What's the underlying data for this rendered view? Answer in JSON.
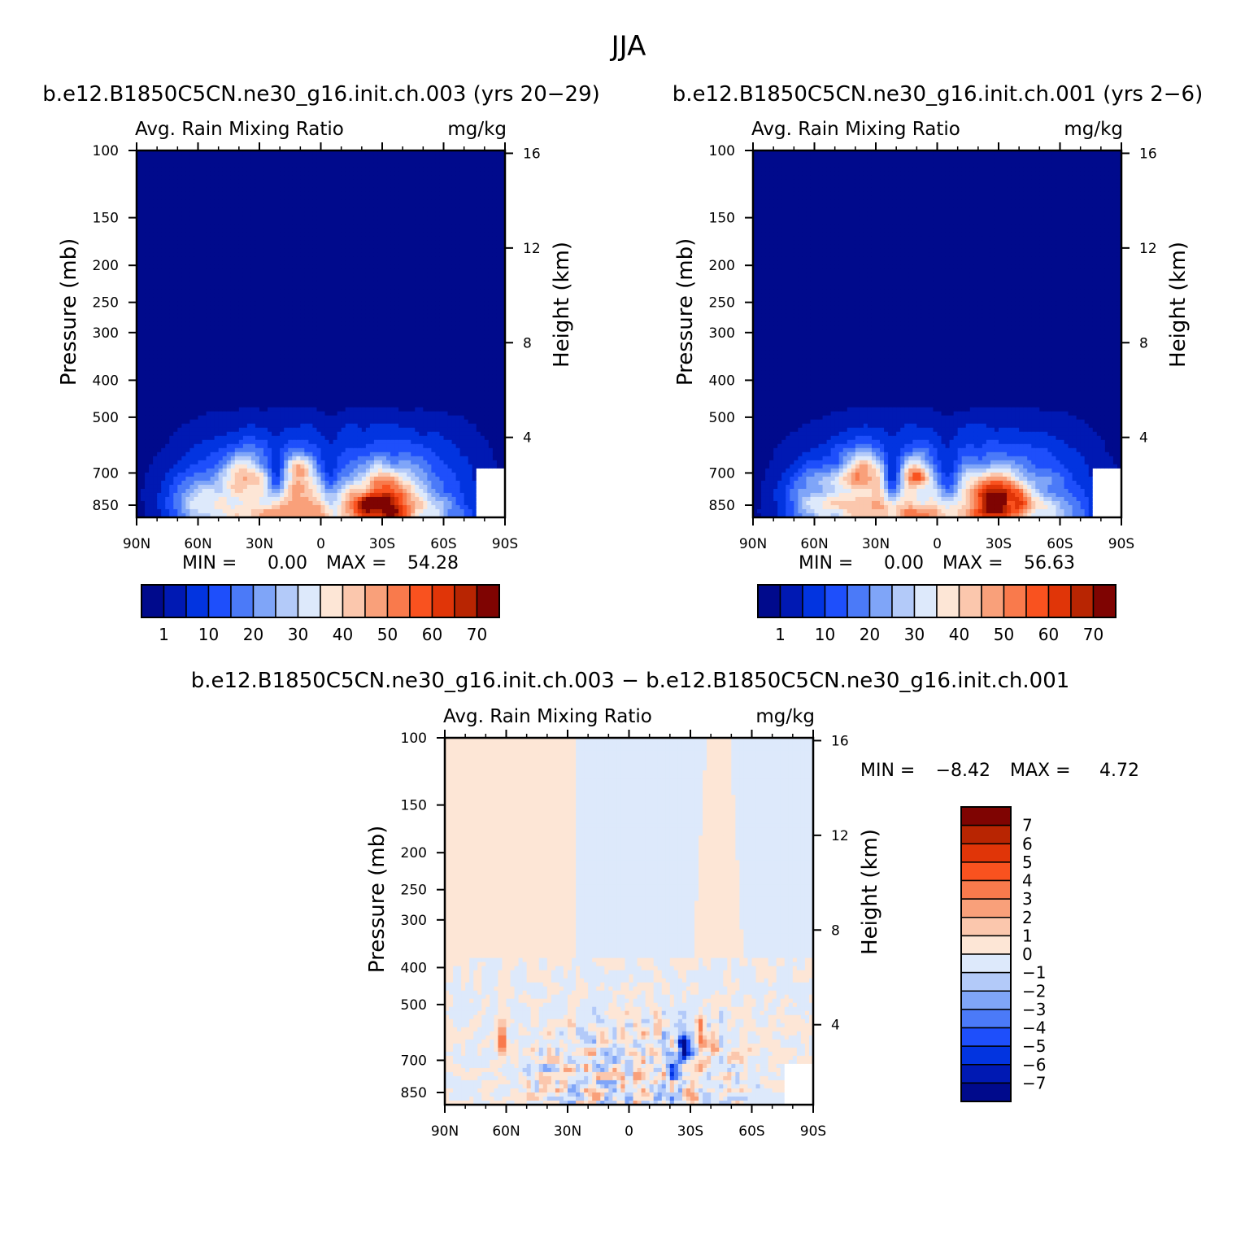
{
  "figure": {
    "title": "JJA"
  },
  "chart_data": [
    {
      "type": "heatmap",
      "title": "b.e12.B1850C5CN.ne30_g16.init.ch.003 (yrs 20-29)",
      "field_label": "Avg. Rain Mixing Ratio",
      "units_label": "mg/kg",
      "xlabel": "",
      "ylabel": "Pressure (mb)",
      "y2label": "Height (km)",
      "x_ticks": [
        "90N",
        "60N",
        "30N",
        "0",
        "30S",
        "60S",
        "90S"
      ],
      "y_ticks": [
        100,
        150,
        200,
        250,
        300,
        400,
        500,
        700,
        850
      ],
      "y2_ticks": [
        16,
        12,
        8,
        4
      ],
      "ylim": [
        1000,
        100
      ],
      "stats": {
        "min_label": "MIN =",
        "min": "0.00",
        "max_label": "MAX =",
        "max": "54.28"
      },
      "colorbar": {
        "labels": [
          "1",
          "10",
          "20",
          "30",
          "40",
          "50",
          "60",
          "70"
        ],
        "colors": [
          "#000a8c",
          "#0019b3",
          "#0234e0",
          "#1e4ffb",
          "#4b7af8",
          "#7fa5f8",
          "#b3caf9",
          "#dde9fb",
          "#fde6d6",
          "#fbc7ad",
          "#f9a07a",
          "#f97a4c",
          "#f9521f",
          "#e03508",
          "#b82502",
          "#7f0402"
        ]
      },
      "features": [
        {
          "name": "max-subtropical-southern",
          "lat": -30,
          "pressure": 800,
          "value": 54
        },
        {
          "name": "secondary-max-northern",
          "lat": 38,
          "pressure": 720,
          "value": 42
        }
      ]
    },
    {
      "type": "heatmap",
      "title": "b.e12.B1850C5CN.ne30_g16.init.ch.001 (yrs 2-6)",
      "field_label": "Avg. Rain Mixing Ratio",
      "units_label": "mg/kg",
      "xlabel": "",
      "ylabel": "Pressure (mb)",
      "y2label": "Height (km)",
      "x_ticks": [
        "90N",
        "60N",
        "30N",
        "0",
        "30S",
        "60S",
        "90S"
      ],
      "y_ticks": [
        100,
        150,
        200,
        250,
        300,
        400,
        500,
        700,
        850
      ],
      "y2_ticks": [
        16,
        12,
        8,
        4
      ],
      "ylim": [
        1000,
        100
      ],
      "stats": {
        "min_label": "MIN =",
        "min": "0.00",
        "max_label": "MAX =",
        "max": "56.63"
      },
      "colorbar": {
        "labels": [
          "1",
          "10",
          "20",
          "30",
          "40",
          "50",
          "60",
          "70"
        ],
        "colors": [
          "#000a8c",
          "#0019b3",
          "#0234e0",
          "#1e4ffb",
          "#4b7af8",
          "#7fa5f8",
          "#b3caf9",
          "#dde9fb",
          "#fde6d6",
          "#fbc7ad",
          "#f9a07a",
          "#f97a4c",
          "#f9521f",
          "#e03508",
          "#b82502",
          "#7f0402"
        ]
      },
      "features": [
        {
          "name": "max-subtropical-southern",
          "lat": -30,
          "pressure": 800,
          "value": 56
        },
        {
          "name": "secondary-max-northern",
          "lat": 38,
          "pressure": 720,
          "value": 43
        }
      ]
    },
    {
      "type": "heatmap",
      "title": "b.e12.B1850C5CN.ne30_g16.init.ch.003 - b.e12.B1850C5CN.ne30_g16.init.ch.001",
      "field_label": "Avg. Rain Mixing Ratio",
      "units_label": "mg/kg",
      "xlabel": "",
      "ylabel": "Pressure (mb)",
      "y2label": "Height (km)",
      "x_ticks": [
        "90N",
        "60N",
        "30N",
        "0",
        "30S",
        "60S",
        "90S"
      ],
      "y_ticks": [
        100,
        150,
        200,
        250,
        300,
        400,
        500,
        700,
        850
      ],
      "y2_ticks": [
        16,
        12,
        8,
        4
      ],
      "ylim": [
        1000,
        100
      ],
      "stats": {
        "min_label": "MIN =",
        "min": "-8.42",
        "max_label": "MAX =",
        "max": "4.72"
      },
      "colorbar": {
        "labels": [
          "7",
          "6",
          "5",
          "4",
          "3",
          "2",
          "1",
          "0",
          "-1",
          "-2",
          "-3",
          "-4",
          "-5",
          "-6",
          "-7"
        ],
        "colors": [
          "#7f0402",
          "#b82502",
          "#e03508",
          "#f9521f",
          "#f97a4c",
          "#f9a07a",
          "#fbc7ad",
          "#fde6d6",
          "#dde9fb",
          "#b3caf9",
          "#7fa5f8",
          "#4b7af8",
          "#1e4ffb",
          "#0234e0",
          "#0019b3",
          "#000a8c"
        ]
      },
      "features": [
        {
          "name": "min-diff",
          "lat": -27,
          "pressure": 650,
          "value": -8.4
        },
        {
          "name": "max-diff",
          "lat": 62,
          "pressure": 620,
          "value": 4.7
        }
      ]
    }
  ]
}
